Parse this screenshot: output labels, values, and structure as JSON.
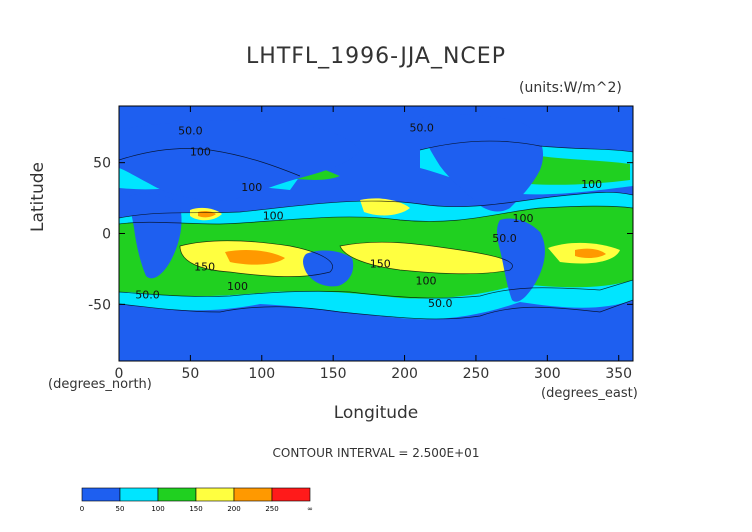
{
  "chart_data": {
    "type": "heatmap",
    "title": "LHTFL_1996-JJA_NCEP",
    "units": "(units:W/m^2)",
    "xlabel": "Longitude",
    "ylabel": "Latitude",
    "x_unit_label": "(degrees_east)",
    "y_unit_label": "(degrees_north)",
    "xlim": [
      0,
      360
    ],
    "ylim": [
      -90,
      90
    ],
    "x_ticks": [
      0,
      50,
      100,
      150,
      200,
      250,
      300,
      350
    ],
    "y_ticks": [
      -50,
      0,
      50
    ],
    "contour_interval_text": "CONTOUR INTERVAL = 2.500E+01",
    "contour_labels": [
      {
        "x": 50,
        "y": 70,
        "text": "50.0"
      },
      {
        "x": 57,
        "y": 55,
        "text": "100"
      },
      {
        "x": 93,
        "y": 30,
        "text": "100"
      },
      {
        "x": 108,
        "y": 10,
        "text": "100"
      },
      {
        "x": 212,
        "y": 72,
        "text": "50.0"
      },
      {
        "x": 331,
        "y": 32,
        "text": "100"
      },
      {
        "x": 270,
        "y": -6,
        "text": "50.0"
      },
      {
        "x": 283,
        "y": 8,
        "text": "100"
      },
      {
        "x": 60,
        "y": -26,
        "text": "150"
      },
      {
        "x": 83,
        "y": -40,
        "text": "100"
      },
      {
        "x": 183,
        "y": -24,
        "text": "150"
      },
      {
        "x": 215,
        "y": -36,
        "text": "100"
      },
      {
        "x": 225,
        "y": -52,
        "text": "50.0"
      },
      {
        "x": 20,
        "y": -46,
        "text": "50.0"
      }
    ],
    "colorbar": {
      "levels": [
        0,
        50,
        100,
        150,
        200,
        250
      ],
      "tick_labels": [
        "0",
        "50",
        "100",
        "150",
        "200",
        "250",
        "∞"
      ],
      "colors": [
        "#1e5ff0",
        "#00e5ff",
        "#20d020",
        "#ffff40",
        "#ff9900",
        "#ff1a1a"
      ]
    },
    "background_level_color": "#1e5ff0"
  }
}
